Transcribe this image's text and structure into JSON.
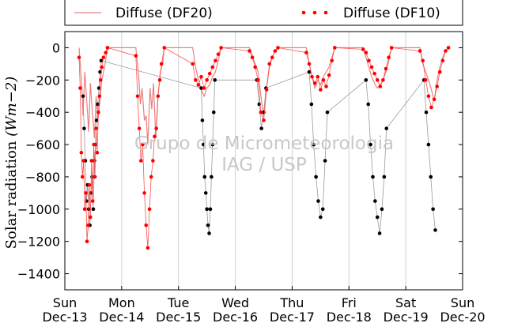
{
  "chart_data": {
    "type": "line",
    "title": "",
    "ylabel_text": "Solar radiation",
    "ylabel_units": "(Wm−2)",
    "xlabel": "",
    "ylim": [
      -1500,
      100
    ],
    "xlim": [
      0,
      7
    ],
    "yticks": [
      0,
      -200,
      -400,
      -600,
      -800,
      -1000,
      -1200,
      -1400
    ],
    "xticks": [
      {
        "x": 0,
        "day": "Sun",
        "date": "Dec-13"
      },
      {
        "x": 1,
        "day": "Mon",
        "date": "Dec-14"
      },
      {
        "x": 2,
        "day": "Tue",
        "date": "Dec-15"
      },
      {
        "x": 3,
        "day": "Wed",
        "date": "Dec-16"
      },
      {
        "x": 4,
        "day": "Thu",
        "date": "Dec-17"
      },
      {
        "x": 5,
        "day": "Fri",
        "date": "Dec-18"
      },
      {
        "x": 6,
        "day": "Sat",
        "date": "Dec-19"
      },
      {
        "x": 7,
        "day": "Sun",
        "date": "Dec-20"
      }
    ],
    "grid": "vertical",
    "legend_position": "top",
    "legend": [
      {
        "label": "Diffuse (DF20)",
        "style": "line",
        "color": "#e88080"
      },
      {
        "label": "Diffuse (DF10)",
        "style": "dots",
        "color": "#ff0000"
      }
    ],
    "watermark": [
      "Grupo de Micrometeorologia",
      "IAG / USP"
    ],
    "series": [
      {
        "name": "Diffuse (DF20)",
        "style": "line",
        "color": "#e88080",
        "x": [
          0.25,
          0.3,
          0.32,
          0.35,
          0.38,
          0.42,
          0.45,
          0.48,
          0.52,
          0.55,
          0.58,
          0.62,
          0.65,
          0.7,
          0.75,
          1.25,
          1.3,
          1.33,
          1.36,
          1.4,
          1.43,
          1.46,
          1.5,
          1.53,
          1.56,
          1.6,
          1.64,
          1.68,
          1.72,
          1.75,
          2.25,
          2.3,
          2.35,
          2.4,
          2.45,
          2.5,
          2.55,
          2.6,
          2.65,
          2.7,
          2.75,
          3.25,
          3.3,
          3.35,
          3.4,
          3.45,
          3.5,
          3.55,
          3.6,
          3.65,
          3.7,
          3.75,
          4.25,
          4.3,
          4.35,
          4.4,
          4.45,
          4.5,
          4.55,
          4.6,
          4.65,
          4.7,
          4.75,
          5.25,
          5.3,
          5.35,
          5.4,
          5.45,
          5.5,
          5.55,
          5.6,
          5.65,
          5.7,
          5.75,
          6.25,
          6.3,
          6.35,
          6.4,
          6.45,
          6.5,
          6.55,
          6.6,
          6.65,
          6.7,
          6.75
        ],
        "y": [
          0,
          -250,
          -420,
          -150,
          -300,
          -520,
          -220,
          -380,
          -560,
          -300,
          -450,
          -320,
          -200,
          -120,
          0,
          0,
          -180,
          -350,
          -250,
          -450,
          -420,
          -600,
          -250,
          -380,
          -220,
          -560,
          -300,
          -150,
          -100,
          0,
          0,
          -120,
          -200,
          -260,
          -300,
          -250,
          -230,
          -180,
          -150,
          -80,
          0,
          0,
          -50,
          -100,
          -150,
          -300,
          -420,
          -250,
          -120,
          -60,
          -20,
          0,
          0,
          -100,
          -180,
          -250,
          -200,
          -230,
          -180,
          -150,
          -120,
          -60,
          0,
          0,
          -60,
          -120,
          -180,
          -220,
          -250,
          -230,
          -200,
          -150,
          -80,
          0,
          0,
          -100,
          -150,
          -200,
          -260,
          -330,
          -200,
          -120,
          -60,
          -20,
          0
        ]
      },
      {
        "name": "Diffuse (DF10)",
        "style": "dots",
        "color": "#ff0000",
        "x": [
          0.25,
          0.27,
          0.29,
          0.31,
          0.33,
          0.35,
          0.37,
          0.39,
          0.41,
          0.43,
          0.45,
          0.47,
          0.49,
          0.51,
          0.53,
          0.55,
          0.57,
          0.59,
          0.61,
          0.63,
          0.65,
          0.68,
          0.72,
          0.75,
          1.25,
          1.28,
          1.31,
          1.34,
          1.37,
          1.4,
          1.43,
          1.46,
          1.49,
          1.52,
          1.55,
          1.58,
          1.61,
          1.64,
          1.67,
          1.7,
          1.75,
          2.25,
          2.3,
          2.35,
          2.4,
          2.45,
          2.5,
          2.55,
          2.6,
          2.65,
          2.7,
          2.75,
          3.25,
          3.3,
          3.35,
          3.4,
          3.45,
          3.5,
          3.55,
          3.6,
          3.65,
          3.7,
          3.75,
          4.25,
          4.3,
          4.35,
          4.4,
          4.45,
          4.5,
          4.55,
          4.6,
          4.65,
          4.7,
          4.75,
          5.25,
          5.3,
          5.35,
          5.4,
          5.45,
          5.5,
          5.55,
          5.6,
          5.65,
          5.7,
          5.75,
          6.25,
          6.3,
          6.35,
          6.4,
          6.45,
          6.5,
          6.55,
          6.6,
          6.65,
          6.7,
          6.75
        ],
        "y": [
          -60,
          -250,
          -650,
          -800,
          -700,
          -1000,
          -900,
          -1200,
          -1100,
          -850,
          -1050,
          -700,
          -950,
          -600,
          -800,
          -500,
          -650,
          -400,
          -300,
          -200,
          -120,
          -60,
          -30,
          0,
          -50,
          -300,
          -500,
          -700,
          -600,
          -900,
          -1100,
          -1240,
          -1000,
          -800,
          -700,
          -550,
          -500,
          -300,
          -200,
          -100,
          0,
          -100,
          -200,
          -230,
          -180,
          -250,
          -200,
          -160,
          -120,
          -80,
          -40,
          0,
          -20,
          -60,
          -120,
          -200,
          -400,
          -450,
          -260,
          -100,
          -60,
          -20,
          0,
          -30,
          -100,
          -180,
          -220,
          -180,
          -260,
          -200,
          -240,
          -170,
          -80,
          0,
          -10,
          -30,
          -80,
          -120,
          -160,
          -200,
          -240,
          -200,
          -130,
          -60,
          0,
          -20,
          -80,
          -200,
          -300,
          -370,
          -320,
          -240,
          -150,
          -80,
          -20,
          0
        ]
      },
      {
        "name": "",
        "style": "dots",
        "color": "#000000",
        "x": [
          0.32,
          0.34,
          0.36,
          0.38,
          0.4,
          0.42,
          0.44,
          0.46,
          0.48,
          0.5,
          0.52,
          0.54,
          0.56,
          0.58,
          0.6,
          0.62,
          0.64,
          2.4,
          2.42,
          2.44,
          2.46,
          2.48,
          2.5,
          2.52,
          2.54,
          2.56,
          2.58,
          2.6,
          2.62,
          2.64,
          3.38,
          3.42,
          3.46,
          3.5,
          3.54,
          4.3,
          4.34,
          4.38,
          4.42,
          4.46,
          4.5,
          4.54,
          4.58,
          4.62,
          5.3,
          5.34,
          5.38,
          5.42,
          5.46,
          5.5,
          5.54,
          5.58,
          5.62,
          5.66,
          6.32,
          6.36,
          6.4,
          6.44,
          6.48,
          6.52
        ],
        "y": [
          -300,
          -500,
          -700,
          -950,
          -850,
          -1000,
          -1100,
          -900,
          -800,
          -1000,
          -700,
          -600,
          -450,
          -350,
          -250,
          -150,
          -80,
          -250,
          -450,
          -600,
          -800,
          -900,
          -1000,
          -1100,
          -1150,
          -1000,
          -800,
          -600,
          -400,
          -200,
          -200,
          -350,
          -500,
          -400,
          -250,
          -150,
          -350,
          -600,
          -800,
          -950,
          -1050,
          -1000,
          -700,
          -400,
          -200,
          -350,
          -600,
          -800,
          -950,
          -1050,
          -1150,
          -1000,
          -800,
          -500,
          -200,
          -400,
          -600,
          -800,
          -1000,
          -1130
        ]
      }
    ]
  }
}
